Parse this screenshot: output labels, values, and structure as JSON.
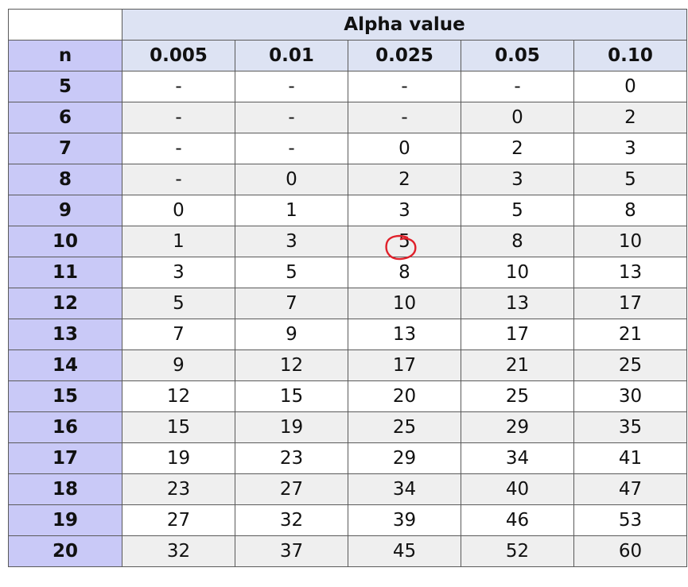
{
  "table": {
    "group_header": "Alpha value",
    "row_header": "n",
    "columns": [
      "0.005",
      "0.01",
      "0.025",
      "0.05",
      "0.10"
    ],
    "rows": [
      {
        "n": "5",
        "values": [
          "-",
          "-",
          "-",
          "-",
          "0"
        ]
      },
      {
        "n": "6",
        "values": [
          "-",
          "-",
          "-",
          "0",
          "2"
        ]
      },
      {
        "n": "7",
        "values": [
          "-",
          "-",
          "0",
          "2",
          "3"
        ]
      },
      {
        "n": "8",
        "values": [
          "-",
          "0",
          "2",
          "3",
          "5"
        ]
      },
      {
        "n": "9",
        "values": [
          "0",
          "1",
          "3",
          "5",
          "8"
        ]
      },
      {
        "n": "10",
        "values": [
          "1",
          "3",
          "5",
          "8",
          "10"
        ]
      },
      {
        "n": "11",
        "values": [
          "3",
          "5",
          "8",
          "10",
          "13"
        ]
      },
      {
        "n": "12",
        "values": [
          "5",
          "7",
          "10",
          "13",
          "17"
        ]
      },
      {
        "n": "13",
        "values": [
          "7",
          "9",
          "13",
          "17",
          "21"
        ]
      },
      {
        "n": "14",
        "values": [
          "9",
          "12",
          "17",
          "21",
          "25"
        ]
      },
      {
        "n": "15",
        "values": [
          "12",
          "15",
          "20",
          "25",
          "30"
        ]
      },
      {
        "n": "16",
        "values": [
          "15",
          "19",
          "25",
          "29",
          "35"
        ]
      },
      {
        "n": "17",
        "values": [
          "19",
          "23",
          "29",
          "34",
          "41"
        ]
      },
      {
        "n": "18",
        "values": [
          "23",
          "27",
          "34",
          "40",
          "47"
        ]
      },
      {
        "n": "19",
        "values": [
          "27",
          "32",
          "39",
          "46",
          "53"
        ]
      },
      {
        "n": "20",
        "values": [
          "32",
          "37",
          "45",
          "52",
          "60"
        ]
      }
    ],
    "highlight": {
      "n": "10",
      "column": "0.025",
      "value": "5",
      "mark_color": "#e0202a"
    }
  },
  "colors": {
    "header_bg": "#dde3f3",
    "n_column_bg": "#c9c9f7",
    "alt_row_bg": "#efefef",
    "border": "#5a5a5a"
  }
}
